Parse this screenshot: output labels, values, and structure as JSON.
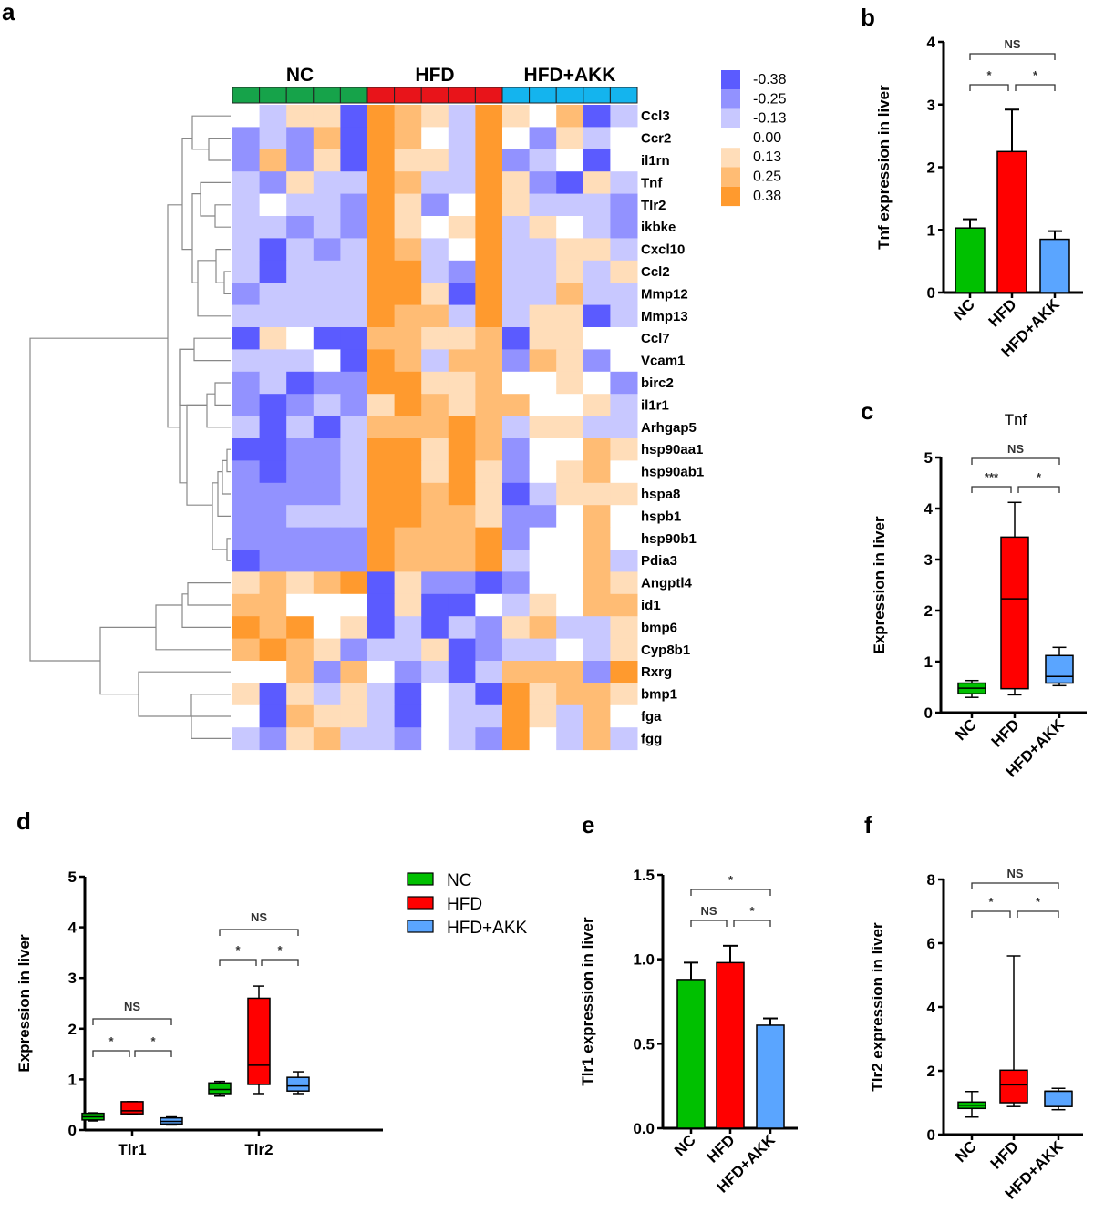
{
  "figure": {
    "panel_letters": [
      "a",
      "b",
      "c",
      "d",
      "e",
      "f"
    ]
  },
  "colors": {
    "NC": "#00c000",
    "HFD": "#ff0000",
    "HFD+AKK": "#5aa5ff",
    "NC_bar": "#16a34a",
    "HFD_bar": "#e8141a",
    "AKK_bar": "#14b4ee",
    "neg": "#5b5bff",
    "pos": "#ff9a2e"
  },
  "chart_data": [
    {
      "id": "a",
      "type": "heatmap",
      "title": "",
      "groups": [
        {
          "name": "NC",
          "columns": 5
        },
        {
          "name": "HFD",
          "columns": 5
        },
        {
          "name": "HFD+AKK",
          "columns": 5
        }
      ],
      "rows": [
        "Ccl3",
        "Ccr2",
        "il1rn",
        "Tnf",
        "Tlr2",
        "ikbke",
        "Cxcl10",
        "Ccl2",
        "Mmp12",
        "Mmp13",
        "Ccl7",
        "Vcam1",
        "birc2",
        "il1r1",
        "Arhgap5",
        "hsp90aa1",
        "hsp90ab1",
        "hspa8",
        "hspb1",
        "hsp90b1",
        "Pdia3",
        "Angptl4",
        "id1",
        "bmp6",
        "Cyp8b1",
        "Rxrg",
        "bmp1",
        "fga",
        "fgg"
      ],
      "colorbar": {
        "labels": [
          "-0.38",
          "-0.25",
          "-0.13",
          "0.00",
          "0.13",
          "0.25",
          "0.38"
        ],
        "min": -0.38,
        "max": 0.38
      },
      "values_scale_note": "levels -3..3 correspond to -0.38..0.38",
      "values": [
        [
          0,
          -1,
          1,
          1,
          -3,
          3,
          2,
          1,
          -1,
          3,
          1,
          0,
          2,
          -3,
          -1
        ],
        [
          -2,
          -1,
          -2,
          2,
          -3,
          3,
          2,
          0,
          -1,
          3,
          0,
          -2,
          1,
          -1,
          0
        ],
        [
          -2,
          2,
          -2,
          1,
          -3,
          3,
          1,
          1,
          -1,
          3,
          -2,
          -1,
          0,
          -3,
          0
        ],
        [
          -1,
          -2,
          1,
          -1,
          -1,
          3,
          2,
          -1,
          -1,
          3,
          1,
          -2,
          -3,
          1,
          -1
        ],
        [
          -1,
          0,
          -1,
          -1,
          -2,
          3,
          1,
          -2,
          0,
          3,
          1,
          -1,
          -1,
          -1,
          -2
        ],
        [
          -1,
          -1,
          -2,
          -1,
          -2,
          3,
          1,
          0,
          1,
          3,
          -1,
          1,
          0,
          -1,
          -2
        ],
        [
          -1,
          -3,
          -1,
          -2,
          -1,
          3,
          2,
          -1,
          0,
          3,
          -1,
          -1,
          1,
          1,
          -1
        ],
        [
          -1,
          -3,
          -1,
          -1,
          -1,
          3,
          3,
          -1,
          -2,
          3,
          -1,
          -1,
          1,
          -1,
          1
        ],
        [
          -2,
          -1,
          -1,
          -1,
          -1,
          3,
          3,
          1,
          -3,
          3,
          -1,
          -1,
          2,
          -1,
          -1
        ],
        [
          -1,
          -1,
          -1,
          -1,
          -1,
          3,
          2,
          2,
          -1,
          3,
          -1,
          1,
          1,
          -3,
          -1
        ],
        [
          -3,
          1,
          0,
          -3,
          -3,
          2,
          2,
          1,
          1,
          2,
          -3,
          1,
          1,
          0,
          0
        ],
        [
          -1,
          -1,
          -1,
          0,
          -3,
          3,
          2,
          -1,
          2,
          2,
          -2,
          2,
          1,
          -2,
          0
        ],
        [
          -2,
          -1,
          -3,
          -2,
          -2,
          3,
          3,
          1,
          1,
          2,
          0,
          0,
          1,
          0,
          -2
        ],
        [
          -2,
          -3,
          -2,
          -1,
          -2,
          1,
          3,
          2,
          1,
          2,
          2,
          0,
          0,
          1,
          -1
        ],
        [
          -1,
          -3,
          -1,
          -3,
          -1,
          2,
          2,
          2,
          3,
          2,
          -1,
          1,
          1,
          -1,
          -1
        ],
        [
          -3,
          -3,
          -2,
          -2,
          -1,
          3,
          3,
          1,
          3,
          2,
          -2,
          0,
          0,
          2,
          1
        ],
        [
          -2,
          -3,
          -2,
          -2,
          -1,
          3,
          3,
          1,
          3,
          1,
          -2,
          0,
          1,
          2,
          0
        ],
        [
          -2,
          -2,
          -2,
          -2,
          -1,
          3,
          3,
          2,
          3,
          1,
          -3,
          -1,
          1,
          1,
          1
        ],
        [
          -2,
          -2,
          -1,
          -1,
          -1,
          3,
          3,
          2,
          2,
          1,
          -2,
          -2,
          0,
          2,
          0
        ],
        [
          -2,
          -2,
          -2,
          -2,
          -2,
          3,
          2,
          2,
          2,
          3,
          -2,
          0,
          0,
          2,
          0
        ],
        [
          -3,
          -2,
          -2,
          -2,
          -2,
          3,
          2,
          2,
          2,
          3,
          -1,
          0,
          0,
          2,
          -1
        ],
        [
          1,
          2,
          1,
          2,
          3,
          -3,
          1,
          -2,
          -2,
          -3,
          -2,
          0,
          0,
          2,
          1
        ],
        [
          2,
          2,
          0,
          0,
          0,
          -3,
          1,
          -3,
          -3,
          0,
          -1,
          1,
          0,
          2,
          2
        ],
        [
          3,
          2,
          3,
          0,
          1,
          -3,
          -1,
          -3,
          -1,
          -2,
          1,
          2,
          -1,
          -1,
          1
        ],
        [
          2,
          3,
          2,
          1,
          -2,
          -1,
          -1,
          1,
          -3,
          -2,
          -1,
          -1,
          0,
          -1,
          1
        ],
        [
          0,
          0,
          2,
          -2,
          2,
          0,
          -2,
          -1,
          -3,
          -1,
          2,
          2,
          2,
          -2,
          3
        ],
        [
          1,
          -3,
          1,
          -1,
          1,
          -1,
          -3,
          0,
          -1,
          -3,
          3,
          1,
          2,
          2,
          1
        ],
        [
          0,
          -3,
          2,
          1,
          1,
          -1,
          -3,
          0,
          -1,
          -1,
          3,
          1,
          -1,
          2,
          0
        ],
        [
          -1,
          -2,
          1,
          2,
          -1,
          -1,
          -2,
          0,
          -1,
          -2,
          3,
          0,
          -1,
          2,
          -1
        ]
      ]
    },
    {
      "id": "b",
      "type": "bar",
      "title": "",
      "categories": [
        "NC",
        "HFD",
        "HFD+AKK"
      ],
      "values": [
        1.03,
        2.25,
        0.85
      ],
      "errors": [
        0.14,
        0.67,
        0.13
      ],
      "ylabel": "Tnf expression in liver",
      "xlabel": "",
      "ylim": [
        0,
        4
      ],
      "yticks": [
        "0",
        "1",
        "2",
        "3",
        "4"
      ],
      "significance": [
        {
          "pair": [
            "NC",
            "HFD"
          ],
          "label": "*"
        },
        {
          "pair": [
            "HFD",
            "HFD+AKK"
          ],
          "label": "*"
        },
        {
          "pair": [
            "NC",
            "HFD+AKK"
          ],
          "label": "NS"
        }
      ]
    },
    {
      "id": "c",
      "type": "box",
      "title": "Tnf",
      "categories": [
        "NC",
        "HFD",
        "HFD+AKK"
      ],
      "boxes": [
        {
          "min": 0.3,
          "q1": 0.37,
          "median": 0.48,
          "q3": 0.58,
          "max": 0.63
        },
        {
          "min": 0.35,
          "q1": 0.47,
          "median": 2.23,
          "q3": 3.44,
          "max": 4.12
        },
        {
          "min": 0.53,
          "q1": 0.58,
          "median": 0.71,
          "q3": 1.12,
          "max": 1.28
        }
      ],
      "ylabel": "Expression  in liver",
      "ylim": [
        0,
        5
      ],
      "yticks": [
        "0",
        "1",
        "2",
        "3",
        "4",
        "5"
      ],
      "significance": [
        {
          "pair": [
            "NC",
            "HFD"
          ],
          "label": "***"
        },
        {
          "pair": [
            "HFD",
            "HFD+AKK"
          ],
          "label": "*"
        },
        {
          "pair": [
            "NC",
            "HFD+AKK"
          ],
          "label": "NS"
        }
      ]
    },
    {
      "id": "d",
      "type": "box",
      "title": "",
      "categories": [
        "Tlr1",
        "Tlr2"
      ],
      "legend": [
        "NC",
        "HFD",
        "HFD+AKK"
      ],
      "legend_position": "top-right",
      "series": [
        {
          "name": "NC",
          "boxes": [
            {
              "min": 0.18,
              "q1": 0.2,
              "median": 0.26,
              "q3": 0.33,
              "max": 0.34
            },
            {
              "min": 0.67,
              "q1": 0.72,
              "median": 0.8,
              "q3": 0.93,
              "max": 0.96
            }
          ]
        },
        {
          "name": "HFD",
          "boxes": [
            {
              "min": 0.32,
              "q1": 0.32,
              "median": 0.38,
              "q3": 0.56,
              "max": 0.56
            },
            {
              "min": 0.72,
              "q1": 0.9,
              "median": 1.28,
              "q3": 2.6,
              "max": 2.84
            }
          ]
        },
        {
          "name": "HFD+AKK",
          "boxes": [
            {
              "min": 0.1,
              "q1": 0.12,
              "median": 0.17,
              "q3": 0.24,
              "max": 0.26
            },
            {
              "min": 0.72,
              "q1": 0.77,
              "median": 0.87,
              "q3": 1.04,
              "max": 1.15
            }
          ]
        }
      ],
      "ylabel": "Expression  in liver",
      "ylim": [
        0,
        5
      ],
      "yticks": [
        "0",
        "1",
        "2",
        "3",
        "4",
        "5"
      ],
      "significance": [
        {
          "group": "Tlr1",
          "pair": [
            "NC",
            "HFD"
          ],
          "label": "*"
        },
        {
          "group": "Tlr1",
          "pair": [
            "HFD",
            "HFD+AKK"
          ],
          "label": "*"
        },
        {
          "group": "Tlr1",
          "pair": [
            "NC",
            "HFD+AKK"
          ],
          "label": "NS"
        },
        {
          "group": "Tlr2",
          "pair": [
            "NC",
            "HFD"
          ],
          "label": "*"
        },
        {
          "group": "Tlr2",
          "pair": [
            "HFD",
            "HFD+AKK"
          ],
          "label": "*"
        },
        {
          "group": "Tlr2",
          "pair": [
            "NC",
            "HFD+AKK"
          ],
          "label": "NS"
        }
      ]
    },
    {
      "id": "e",
      "type": "bar",
      "title": "",
      "categories": [
        "NC",
        "HFD",
        "HFD+AKK"
      ],
      "values": [
        0.88,
        0.98,
        0.61
      ],
      "errors": [
        0.1,
        0.1,
        0.04
      ],
      "ylabel": "Tlr1 expression in liver",
      "ylim": [
        0,
        1.5
      ],
      "yticks": [
        "0.0",
        "0.5",
        "1.0",
        "1.5"
      ],
      "significance": [
        {
          "pair": [
            "NC",
            "HFD"
          ],
          "label": "NS"
        },
        {
          "pair": [
            "HFD",
            "HFD+AKK"
          ],
          "label": "*"
        },
        {
          "pair": [
            "NC",
            "HFD+AKK"
          ],
          "label": "*"
        }
      ]
    },
    {
      "id": "f",
      "type": "box",
      "title": "",
      "categories": [
        "NC",
        "HFD",
        "HFD+AKK"
      ],
      "boxes": [
        {
          "min": 0.55,
          "q1": 0.82,
          "median": 0.92,
          "q3": 1.02,
          "max": 1.35
        },
        {
          "min": 0.88,
          "q1": 1.0,
          "median": 1.56,
          "q3": 2.02,
          "max": 5.6
        },
        {
          "min": 0.78,
          "q1": 0.88,
          "median": 1.36,
          "q3": 1.36,
          "max": 1.45
        }
      ],
      "ylabel": "Tlr2 expression in liver",
      "ylim": [
        0,
        8
      ],
      "yticks": [
        "0",
        "2",
        "4",
        "6",
        "8"
      ],
      "significance": [
        {
          "pair": [
            "NC",
            "HFD"
          ],
          "label": "*"
        },
        {
          "pair": [
            "HFD",
            "HFD+AKK"
          ],
          "label": "*"
        },
        {
          "pair": [
            "NC",
            "HFD+AKK"
          ],
          "label": "NS"
        }
      ]
    }
  ]
}
